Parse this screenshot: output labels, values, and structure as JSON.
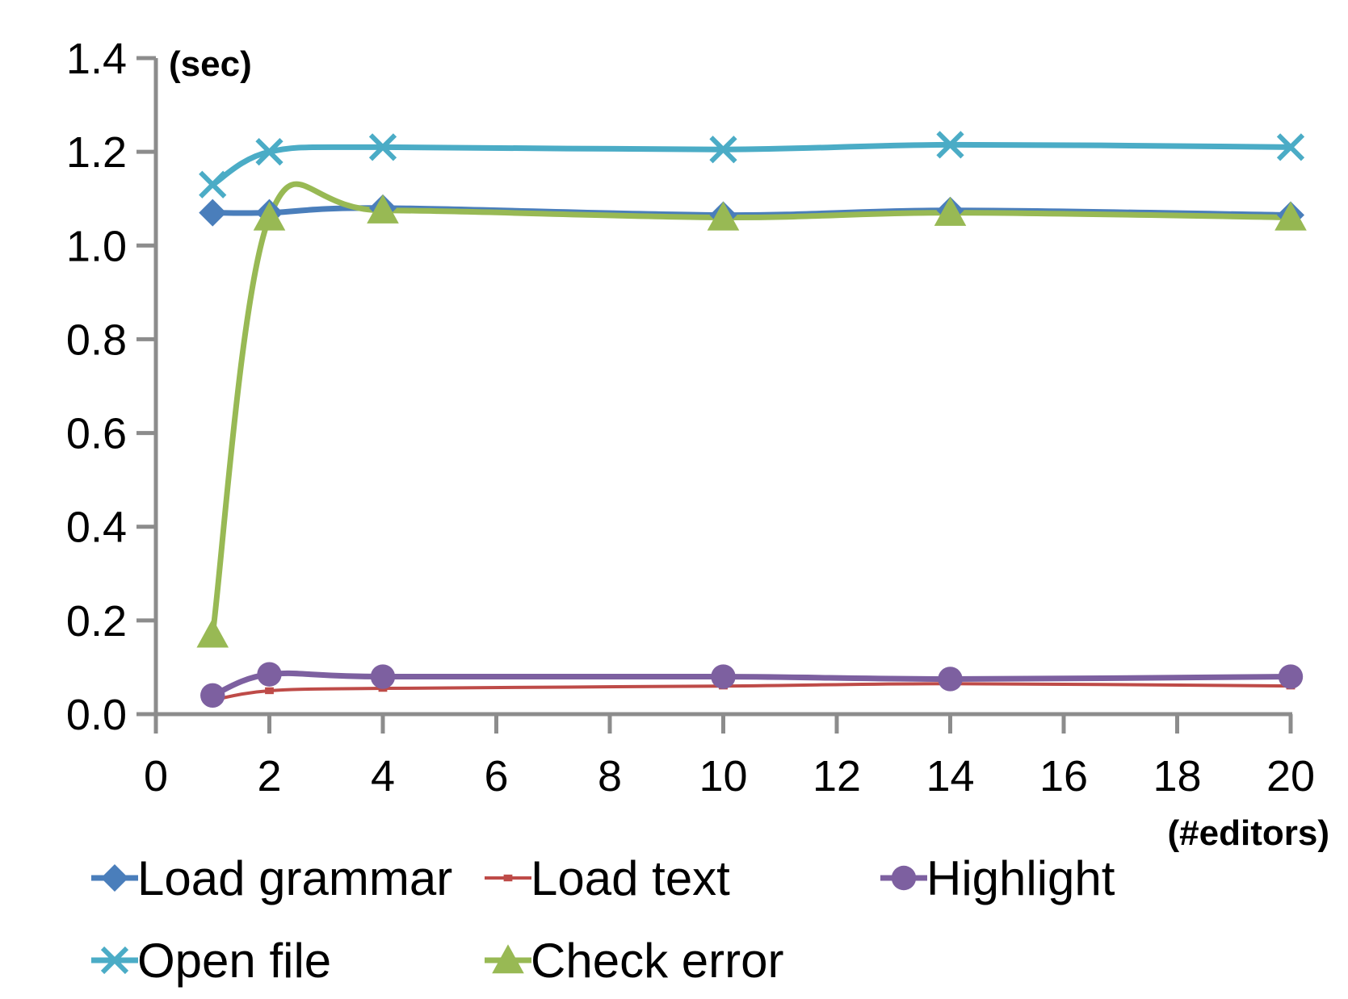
{
  "chart_data": {
    "type": "line",
    "xlabel": "(#editors)",
    "ylabel": "(sec)",
    "xlim": [
      0,
      20
    ],
    "ylim": [
      0,
      1.4
    ],
    "x_ticks": [
      "0",
      "2",
      "4",
      "6",
      "8",
      "10",
      "12",
      "14",
      "16",
      "18",
      "20"
    ],
    "y_ticks": [
      "0.0",
      "0.2",
      "0.4",
      "0.6",
      "0.8",
      "1.0",
      "1.2",
      "1.4"
    ],
    "grid": false,
    "legend_position": "bottom",
    "x": [
      1,
      2,
      4,
      10,
      14,
      20
    ],
    "series": [
      {
        "name": "Load grammar",
        "values": [
          1.07,
          1.07,
          1.08,
          1.065,
          1.075,
          1.065
        ],
        "color": "#4a7ebb",
        "marker": "diamond"
      },
      {
        "name": "Load text",
        "values": [
          0.03,
          0.05,
          0.055,
          0.06,
          0.065,
          0.06
        ],
        "color": "#be4b48",
        "marker": "square"
      },
      {
        "name": "Highlight",
        "values": [
          0.04,
          0.085,
          0.08,
          0.08,
          0.075,
          0.08
        ],
        "color": "#7d60a0",
        "marker": "circle"
      },
      {
        "name": "Open file",
        "values": [
          1.13,
          1.2,
          1.21,
          1.205,
          1.215,
          1.21
        ],
        "color": "#4bacc6",
        "marker": "x"
      },
      {
        "name": "Check error",
        "values": [
          0.17,
          1.06,
          1.075,
          1.06,
          1.07,
          1.06
        ],
        "color": "#98b954",
        "marker": "triangle"
      }
    ]
  }
}
